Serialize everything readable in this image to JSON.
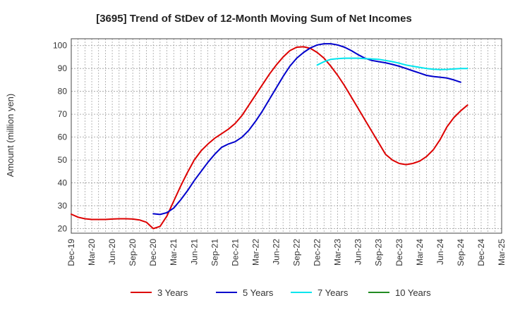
{
  "chart_data": {
    "type": "line",
    "title": "[3695]  Trend of StDev of 12-Month Moving Sum of Net Incomes",
    "ylabel": "Amount (million yen)",
    "xlabel": "",
    "ylim": [
      18,
      103
    ],
    "yticks": [
      20,
      30,
      40,
      50,
      60,
      70,
      80,
      90,
      100
    ],
    "xticks": [
      "Dec-19",
      "Mar-20",
      "Jun-20",
      "Sep-20",
      "Dec-20",
      "Mar-21",
      "Jun-21",
      "Sep-21",
      "Dec-21",
      "Mar-22",
      "Jun-22",
      "Sep-22",
      "Dec-22",
      "Mar-23",
      "Jun-23",
      "Sep-23",
      "Dec-23",
      "Mar-24",
      "Jun-24",
      "Sep-24",
      "Dec-24",
      "Mar-25"
    ],
    "grid": true,
    "legend_position": "bottom",
    "series": [
      {
        "name": "3 Years",
        "color": "#dd0000",
        "points": [
          [
            "Dec-19",
            26.3
          ],
          [
            "Jan-20",
            25.0
          ],
          [
            "Feb-20",
            24.3
          ],
          [
            "Mar-20",
            24.0
          ],
          [
            "Apr-20",
            24.0
          ],
          [
            "May-20",
            24.0
          ],
          [
            "Jun-20",
            24.2
          ],
          [
            "Jul-20",
            24.3
          ],
          [
            "Aug-20",
            24.3
          ],
          [
            "Sep-20",
            24.2
          ],
          [
            "Oct-20",
            23.8
          ],
          [
            "Nov-20",
            22.8
          ],
          [
            "Dec-20",
            20.0
          ],
          [
            "Jan-21",
            21.0
          ],
          [
            "Feb-21",
            25.5
          ],
          [
            "Mar-21",
            32.0
          ],
          [
            "Apr-21",
            38.5
          ],
          [
            "May-21",
            44.5
          ],
          [
            "Jun-21",
            50.0
          ],
          [
            "Jul-21",
            54.0
          ],
          [
            "Aug-21",
            57.0
          ],
          [
            "Sep-21",
            59.5
          ],
          [
            "Oct-21",
            61.5
          ],
          [
            "Nov-21",
            63.5
          ],
          [
            "Dec-21",
            66.0
          ],
          [
            "Jan-22",
            69.5
          ],
          [
            "Feb-22",
            74.0
          ],
          [
            "Mar-22",
            78.5
          ],
          [
            "Apr-22",
            83.0
          ],
          [
            "May-22",
            87.5
          ],
          [
            "Jun-22",
            91.5
          ],
          [
            "Jul-22",
            95.0
          ],
          [
            "Aug-22",
            97.8
          ],
          [
            "Sep-22",
            99.3
          ],
          [
            "Oct-22",
            99.5
          ],
          [
            "Nov-22",
            98.8
          ],
          [
            "Dec-22",
            97.0
          ],
          [
            "Jan-23",
            94.5
          ],
          [
            "Feb-23",
            91.0
          ],
          [
            "Mar-23",
            87.0
          ],
          [
            "Apr-23",
            82.5
          ],
          [
            "May-23",
            77.5
          ],
          [
            "Jun-23",
            72.5
          ],
          [
            "Jul-23",
            67.5
          ],
          [
            "Aug-23",
            62.5
          ],
          [
            "Sep-23",
            57.5
          ],
          [
            "Oct-23",
            52.5
          ],
          [
            "Nov-23",
            50.0
          ],
          [
            "Dec-23",
            48.5
          ],
          [
            "Jan-24",
            48.0
          ],
          [
            "Feb-24",
            48.5
          ],
          [
            "Mar-24",
            49.5
          ],
          [
            "Apr-24",
            51.5
          ],
          [
            "May-24",
            54.5
          ],
          [
            "Jun-24",
            59.0
          ],
          [
            "Jul-24",
            64.5
          ],
          [
            "Aug-24",
            68.5
          ],
          [
            "Sep-24",
            71.5
          ],
          [
            "Oct-24",
            74.0
          ]
        ]
      },
      {
        "name": "5 Years",
        "color": "#0000cc",
        "points": [
          [
            "Dec-20",
            26.5
          ],
          [
            "Jan-21",
            26.2
          ],
          [
            "Feb-21",
            27.0
          ],
          [
            "Mar-21",
            29.0
          ],
          [
            "Apr-21",
            32.5
          ],
          [
            "May-21",
            36.5
          ],
          [
            "Jun-21",
            41.0
          ],
          [
            "Jul-21",
            45.0
          ],
          [
            "Aug-21",
            49.0
          ],
          [
            "Sep-21",
            52.5
          ],
          [
            "Oct-21",
            55.5
          ],
          [
            "Nov-21",
            57.0
          ],
          [
            "Dec-21",
            58.0
          ],
          [
            "Jan-22",
            60.0
          ],
          [
            "Feb-22",
            63.0
          ],
          [
            "Mar-22",
            67.0
          ],
          [
            "Apr-22",
            71.5
          ],
          [
            "May-22",
            76.5
          ],
          [
            "Jun-22",
            81.5
          ],
          [
            "Jul-22",
            86.5
          ],
          [
            "Aug-22",
            91.0
          ],
          [
            "Sep-22",
            94.5
          ],
          [
            "Oct-22",
            97.0
          ],
          [
            "Nov-22",
            99.0
          ],
          [
            "Dec-22",
            100.3
          ],
          [
            "Jan-23",
            100.8
          ],
          [
            "Feb-23",
            100.8
          ],
          [
            "Mar-23",
            100.3
          ],
          [
            "Apr-23",
            99.3
          ],
          [
            "May-23",
            97.8
          ],
          [
            "Jun-23",
            96.0
          ],
          [
            "Jul-23",
            94.5
          ],
          [
            "Aug-23",
            93.5
          ],
          [
            "Sep-23",
            93.0
          ],
          [
            "Oct-23",
            92.5
          ],
          [
            "Nov-23",
            91.8
          ],
          [
            "Dec-23",
            91.0
          ],
          [
            "Jan-24",
            90.0
          ],
          [
            "Feb-24",
            89.0
          ],
          [
            "Mar-24",
            88.0
          ],
          [
            "Apr-24",
            87.0
          ],
          [
            "May-24",
            86.5
          ],
          [
            "Jun-24",
            86.2
          ],
          [
            "Jul-24",
            85.8
          ],
          [
            "Aug-24",
            85.0
          ],
          [
            "Sep-24",
            84.0
          ]
        ]
      },
      {
        "name": "7 Years",
        "color": "#00e5ee",
        "points": [
          [
            "Dec-22",
            91.5
          ],
          [
            "Jan-23",
            93.0
          ],
          [
            "Feb-23",
            94.0
          ],
          [
            "Mar-23",
            94.3
          ],
          [
            "Apr-23",
            94.5
          ],
          [
            "May-23",
            94.5
          ],
          [
            "Jun-23",
            94.5
          ],
          [
            "Jul-23",
            94.3
          ],
          [
            "Aug-23",
            94.2
          ],
          [
            "Sep-23",
            94.0
          ],
          [
            "Oct-23",
            93.5
          ],
          [
            "Nov-23",
            93.0
          ],
          [
            "Dec-23",
            92.3
          ],
          [
            "Jan-24",
            91.5
          ],
          [
            "Feb-24",
            91.0
          ],
          [
            "Mar-24",
            90.5
          ],
          [
            "Apr-24",
            90.0
          ],
          [
            "May-24",
            89.7
          ],
          [
            "Jun-24",
            89.5
          ],
          [
            "Jul-24",
            89.6
          ],
          [
            "Aug-24",
            89.8
          ],
          [
            "Sep-24",
            90.0
          ],
          [
            "Oct-24",
            90.0
          ]
        ]
      },
      {
        "name": "10 Years",
        "color": "#228b22",
        "points": []
      }
    ]
  }
}
